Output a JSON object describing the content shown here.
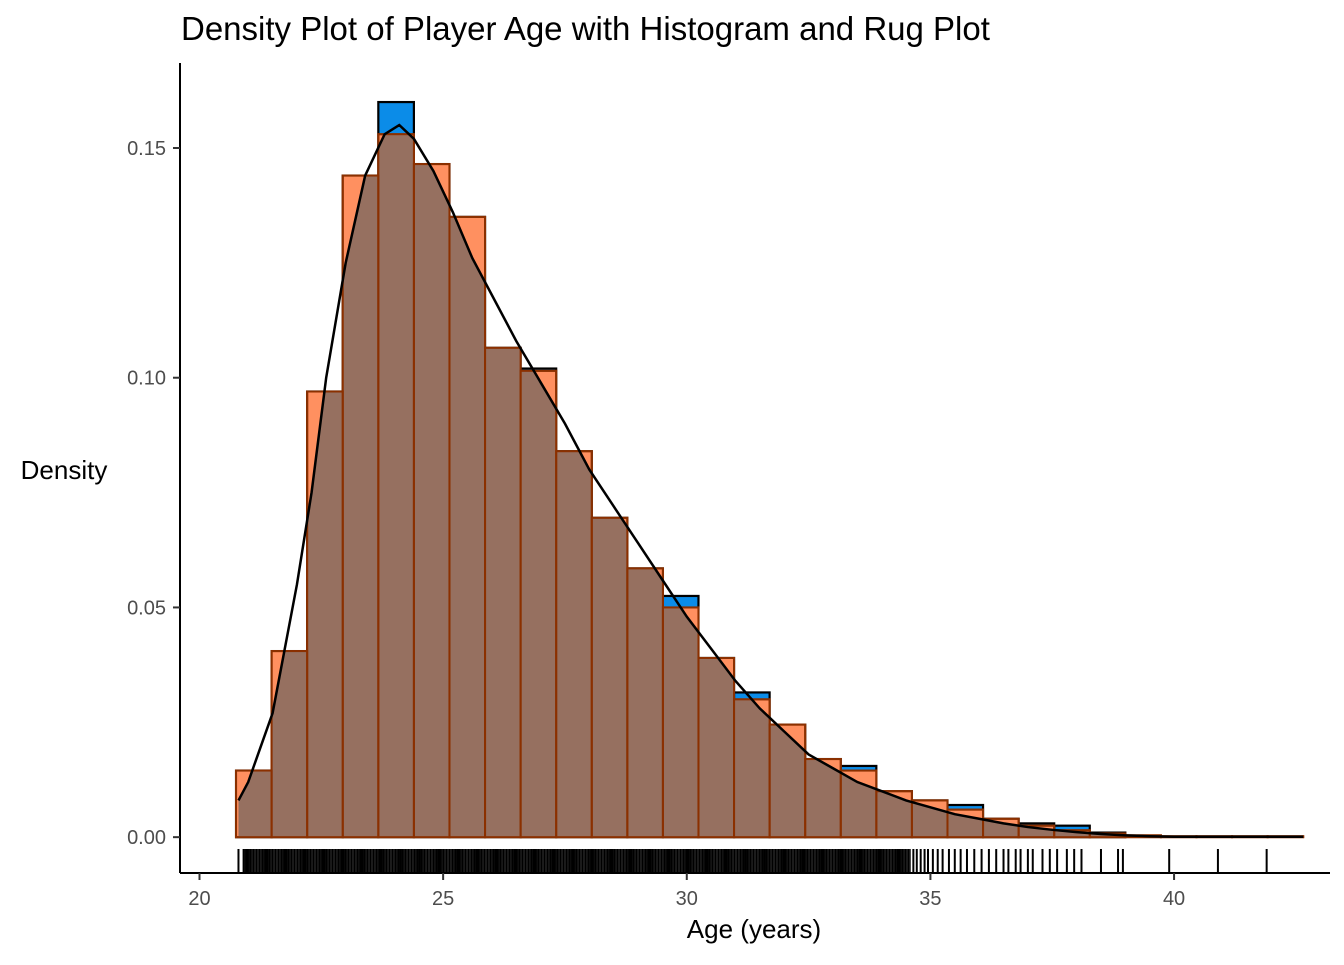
{
  "chart_data": {
    "type": "bar",
    "title": "Density Plot of Player Age with Histogram and Rug Plot",
    "xlabel": "Age (years)",
    "ylabel": "Density",
    "xlim": [
      19.6,
      43.2
    ],
    "ylim": [
      -0.0078,
      0.1685
    ],
    "x_ticks": [
      20,
      25,
      30,
      35,
      40
    ],
    "x_tick_labels": [
      "20",
      "25",
      "30",
      "35",
      "40"
    ],
    "y_ticks": [
      0.0,
      0.05,
      0.1,
      0.15
    ],
    "y_tick_labels": [
      "0.00",
      "0.05",
      "0.10",
      "0.15"
    ],
    "grid": false,
    "colors": {
      "histogram_fill": "#0b8ce8",
      "histogram_outline": "#000000",
      "density_histogram_fill": "#ff9060",
      "density_histogram_outline": "#8b3000",
      "overlap": "#967060",
      "density_line": "#000000",
      "rug": "#000000"
    },
    "histogram_bins": {
      "edges": [
        20.75,
        21.48,
        22.21,
        22.94,
        23.67,
        24.4,
        25.13,
        25.86,
        26.59,
        27.32,
        28.05,
        28.78,
        29.51,
        30.24,
        30.97,
        31.7,
        32.43,
        33.16,
        33.89,
        34.62,
        35.35,
        36.08,
        36.81,
        37.54,
        38.27,
        39.0
      ],
      "values": [
        0.0145,
        0.0405,
        0.097,
        0.144,
        0.16,
        0.1465,
        0.135,
        0.1065,
        0.102,
        0.084,
        0.0695,
        0.0585,
        0.0525,
        0.039,
        0.0315,
        0.0245,
        0.017,
        0.0155,
        0.01,
        0.008,
        0.007,
        0.004,
        0.003,
        0.0025,
        0.001
      ]
    },
    "density_histogram_bins": {
      "edges": [
        20.75,
        21.48,
        22.21,
        22.94,
        23.67,
        24.4,
        25.13,
        25.86,
        26.59,
        27.32,
        28.05,
        28.78,
        29.51,
        30.24,
        30.97,
        31.7,
        32.43,
        33.16,
        33.89,
        34.62,
        35.35,
        36.08,
        36.81,
        37.54,
        38.27,
        39.0,
        39.73,
        40.46,
        41.19,
        41.92,
        42.65
      ],
      "values": [
        0.0145,
        0.0405,
        0.097,
        0.144,
        0.153,
        0.1465,
        0.135,
        0.1065,
        0.1015,
        0.084,
        0.0695,
        0.0585,
        0.05,
        0.039,
        0.03,
        0.0245,
        0.017,
        0.0145,
        0.01,
        0.008,
        0.006,
        0.004,
        0.0025,
        0.0015,
        0.0008,
        0.0004,
        0.0002,
        0.0002,
        0.0002,
        0.0002
      ]
    },
    "density_curve": {
      "x": [
        20.8,
        21.0,
        21.5,
        22.0,
        22.3,
        22.6,
        23.0,
        23.4,
        23.8,
        24.1,
        24.4,
        24.8,
        25.2,
        25.6,
        26.0,
        26.5,
        27.0,
        27.5,
        28.0,
        28.5,
        29.0,
        29.5,
        30.0,
        30.5,
        31.0,
        31.5,
        32.0,
        32.5,
        33.0,
        33.5,
        34.0,
        34.5,
        35.0,
        35.5,
        36.0,
        36.5,
        37.0,
        37.5,
        38.0,
        38.5,
        39.0,
        39.5,
        40.0,
        41.0,
        42.0,
        42.65
      ],
      "y": [
        0.008,
        0.012,
        0.027,
        0.055,
        0.075,
        0.1,
        0.125,
        0.144,
        0.153,
        0.155,
        0.152,
        0.145,
        0.136,
        0.126,
        0.118,
        0.108,
        0.099,
        0.09,
        0.08,
        0.072,
        0.064,
        0.056,
        0.048,
        0.041,
        0.034,
        0.028,
        0.023,
        0.018,
        0.015,
        0.012,
        0.01,
        0.008,
        0.0065,
        0.005,
        0.004,
        0.003,
        0.0022,
        0.0016,
        0.0011,
        0.0007,
        0.0004,
        0.0002,
        0.0001,
        0.0001,
        0.0001,
        0.0001
      ]
    },
    "rug": {
      "dense_range": [
        20.9,
        34.6
      ],
      "sparse_x": [
        34.65,
        34.72,
        34.8,
        34.88,
        34.95,
        35.05,
        35.15,
        35.25,
        35.38,
        35.5,
        35.62,
        35.75,
        35.9,
        36.05,
        36.2,
        36.35,
        36.5,
        36.6,
        36.75,
        36.85,
        37.0,
        37.1,
        37.3,
        37.45,
        37.6,
        37.8,
        37.95,
        38.1,
        38.5,
        38.85,
        38.95,
        39.9,
        40.9,
        41.9
      ]
    }
  }
}
